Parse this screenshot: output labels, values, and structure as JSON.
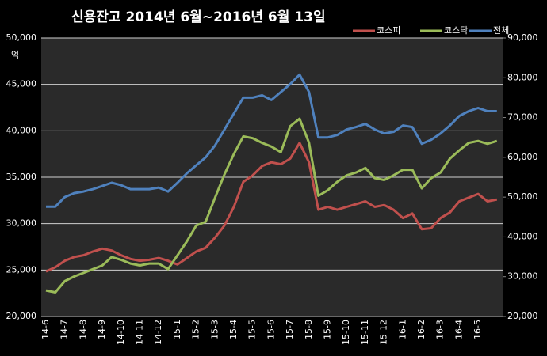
{
  "chart_data": {
    "type": "line",
    "title": "신용잔고 2014년 6월~2016년 6월 13일",
    "ylabel": "억",
    "categories": [
      "14-6",
      null,
      "14-7",
      null,
      "14-8",
      null,
      "14-9",
      null,
      "14-10",
      null,
      "14-11",
      null,
      "14-12",
      null,
      "15-1",
      null,
      "15-2",
      null,
      "15-3",
      null,
      "15-4",
      null,
      "15-5",
      null,
      "15-6",
      null,
      "15-7",
      null,
      "15-8",
      null,
      "15-9",
      null,
      "15-10",
      null,
      "15-11",
      null,
      "15-12",
      null,
      "16-1",
      null,
      "16-2",
      null,
      "16-3",
      null,
      "16-4",
      null,
      "16-5",
      null,
      null
    ],
    "series": [
      {
        "name": "코스피",
        "color": "#c0504d",
        "axis": "y",
        "values": [
          24850,
          25300,
          26000,
          26400,
          26600,
          27000,
          27300,
          27100,
          26600,
          26200,
          26000,
          26100,
          26300,
          26000,
          25600,
          26300,
          27000,
          27400,
          28500,
          29800,
          31800,
          34500,
          35200,
          36200,
          36600,
          36400,
          37000,
          38700,
          36600,
          31500,
          31800,
          31500,
          31800,
          32100,
          32400,
          31800,
          32000,
          31500,
          30600,
          31100,
          29400,
          29500,
          30600,
          31200,
          32400,
          32800,
          33200,
          32400,
          32600
        ]
      },
      {
        "name": "코스닥",
        "color": "#9bbb59",
        "axis": "y",
        "values": [
          22800,
          22600,
          23800,
          24300,
          24700,
          25100,
          25500,
          26400,
          26100,
          25700,
          25500,
          25700,
          25700,
          25100,
          26600,
          28100,
          29800,
          30200,
          32800,
          35300,
          37500,
          39400,
          39200,
          38700,
          38300,
          37700,
          40500,
          41300,
          38700,
          33000,
          33600,
          34500,
          35200,
          35500,
          36000,
          34900,
          34700,
          35200,
          35800,
          35800,
          33800,
          34900,
          35500,
          37000,
          37900,
          38700,
          38900,
          38600,
          38900
        ]
      },
      {
        "name": "전체",
        "color": "#4f81bd",
        "axis": "y2",
        "values": [
          47600,
          47600,
          50000,
          51000,
          51400,
          52000,
          52800,
          53600,
          53000,
          52000,
          52000,
          52000,
          52400,
          51400,
          53600,
          56000,
          58000,
          60000,
          63000,
          67000,
          71000,
          75000,
          75000,
          75600,
          74400,
          76400,
          78400,
          80800,
          76400,
          65000,
          65000,
          65600,
          67000,
          67600,
          68400,
          67000,
          66000,
          66400,
          68000,
          67600,
          63400,
          64400,
          66000,
          68000,
          70400,
          71600,
          72400,
          71600,
          71600
        ]
      }
    ],
    "ylim": [
      20000,
      50000
    ],
    "yticks": [
      {
        "value": 20000,
        "label": "20,000"
      },
      {
        "value": 25000,
        "label": "25,000"
      },
      {
        "value": 30000,
        "label": "30,000"
      },
      {
        "value": 35000,
        "label": "35,000"
      },
      {
        "value": 40000,
        "label": "40,000"
      },
      {
        "value": 45000,
        "label": "45,000"
      },
      {
        "value": 50000,
        "label": "50,000"
      }
    ],
    "y2lim": [
      20000,
      90000
    ],
    "y2ticks": [
      {
        "value": 20000,
        "label": "20,000"
      },
      {
        "value": 30000,
        "label": "30,000"
      },
      {
        "value": 40000,
        "label": "40,000"
      },
      {
        "value": 50000,
        "label": "50,000"
      },
      {
        "value": 60000,
        "label": "60,000"
      },
      {
        "value": 70000,
        "label": "70,000"
      },
      {
        "value": 80000,
        "label": "80,000"
      },
      {
        "value": 90000,
        "label": "90,000"
      }
    ],
    "grid": true,
    "legend": "top-right"
  }
}
